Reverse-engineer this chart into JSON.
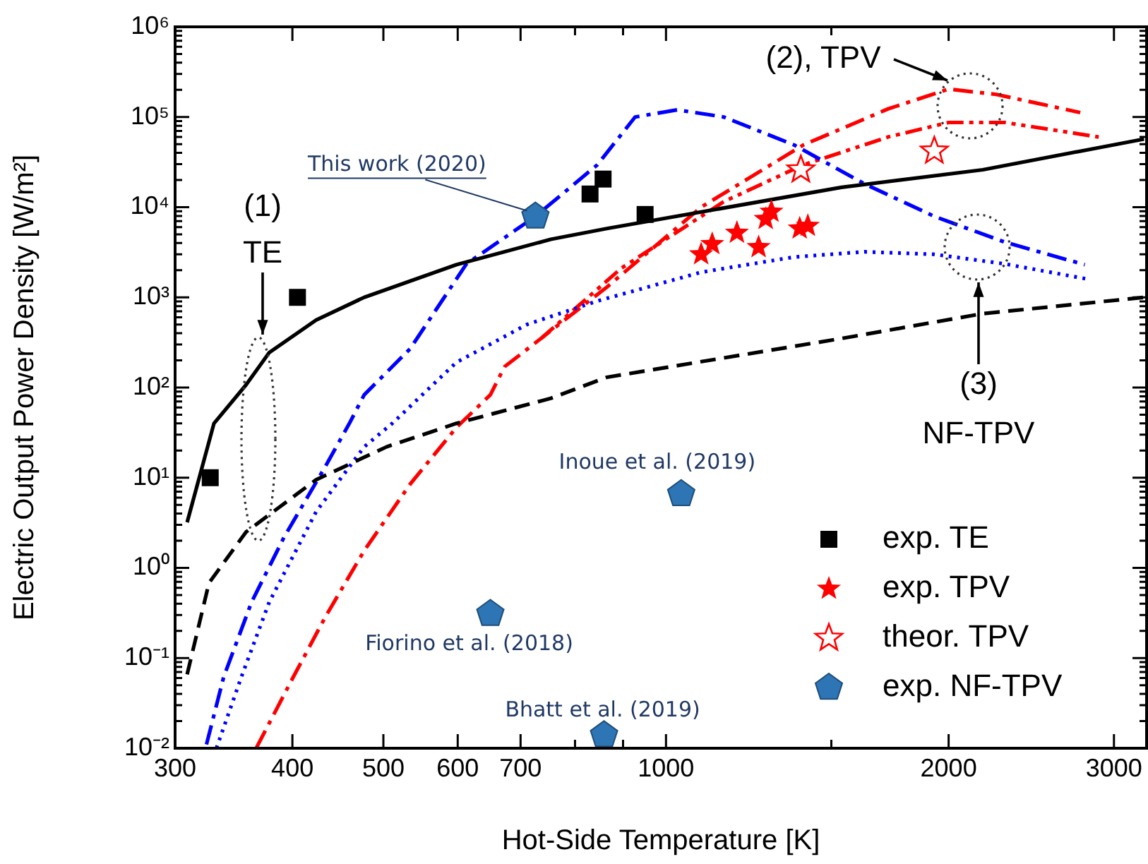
{
  "chart_data": {
    "type": "scatter",
    "xlabel": "Hot-Side Temperature [K]",
    "ylabel": "Electric Output Power Density [W/m²]",
    "log": "xy",
    "xlim": [
      300,
      3250
    ],
    "ylim": [
      0.01,
      1000000
    ],
    "xticks": [
      300,
      400,
      500,
      600,
      700,
      {
        "value": 800,
        "label": null
      },
      {
        "value": 900,
        "label": null
      },
      1000,
      {
        "value": 1500,
        "label": null
      },
      2000,
      3000
    ],
    "yticks": [
      {
        "value": 0.01,
        "label": "10⁻²"
      },
      {
        "value": 0.02,
        "label": null
      },
      {
        "value": 0.03,
        "label": null
      },
      {
        "value": 0.04,
        "label": null
      },
      {
        "value": 0.05,
        "label": null
      },
      {
        "value": 0.06,
        "label": null
      },
      {
        "value": 0.07,
        "label": null
      },
      {
        "value": 0.08,
        "label": null
      },
      {
        "value": 0.09,
        "label": null
      },
      {
        "value": 0.1,
        "label": "10⁻¹"
      },
      {
        "value": 0.2,
        "label": null
      },
      {
        "value": 0.3,
        "label": null
      },
      {
        "value": 0.4,
        "label": null
      },
      {
        "value": 0.5,
        "label": null
      },
      {
        "value": 0.6,
        "label": null
      },
      {
        "value": 0.7,
        "label": null
      },
      {
        "value": 0.8,
        "label": null
      },
      {
        "value": 0.9,
        "label": null
      },
      {
        "value": 1,
        "label": "10⁰"
      },
      {
        "value": 2,
        "label": null
      },
      {
        "value": 3,
        "label": null
      },
      {
        "value": 4,
        "label": null
      },
      {
        "value": 5,
        "label": null
      },
      {
        "value": 6,
        "label": null
      },
      {
        "value": 7,
        "label": null
      },
      {
        "value": 8,
        "label": null
      },
      {
        "value": 9,
        "label": null
      },
      {
        "value": 10,
        "label": "10¹"
      },
      {
        "value": 20,
        "label": null
      },
      {
        "value": 30,
        "label": null
      },
      {
        "value": 40,
        "label": null
      },
      {
        "value": 50,
        "label": null
      },
      {
        "value": 60,
        "label": null
      },
      {
        "value": 70,
        "label": null
      },
      {
        "value": 80,
        "label": null
      },
      {
        "value": 90,
        "label": null
      },
      {
        "value": 100,
        "label": "10²"
      },
      {
        "value": 200,
        "label": null
      },
      {
        "value": 300,
        "label": null
      },
      {
        "value": 400,
        "label": null
      },
      {
        "value": 500,
        "label": null
      },
      {
        "value": 600,
        "label": null
      },
      {
        "value": 700,
        "label": null
      },
      {
        "value": 800,
        "label": null
      },
      {
        "value": 900,
        "label": null
      },
      {
        "value": 1000,
        "label": "10³"
      },
      {
        "value": 2000,
        "label": null
      },
      {
        "value": 3000,
        "label": null
      },
      {
        "value": 4000,
        "label": null
      },
      {
        "value": 5000,
        "label": null
      },
      {
        "value": 6000,
        "label": null
      },
      {
        "value": 7000,
        "label": null
      },
      {
        "value": 8000,
        "label": null
      },
      {
        "value": 9000,
        "label": null
      },
      {
        "value": 10000,
        "label": "10⁴"
      },
      {
        "value": 20000,
        "label": null
      },
      {
        "value": 30000,
        "label": null
      },
      {
        "value": 40000,
        "label": null
      },
      {
        "value": 50000,
        "label": null
      },
      {
        "value": 60000,
        "label": null
      },
      {
        "value": 70000,
        "label": null
      },
      {
        "value": 80000,
        "label": null
      },
      {
        "value": 90000,
        "label": null
      },
      {
        "value": 100000,
        "label": "10⁵"
      },
      {
        "value": 200000,
        "label": null
      },
      {
        "value": 300000,
        "label": null
      },
      {
        "value": 400000,
        "label": null
      },
      {
        "value": 500000,
        "label": null
      },
      {
        "value": 600000,
        "label": null
      },
      {
        "value": 700000,
        "label": null
      },
      {
        "value": 800000,
        "label": null
      },
      {
        "value": 900000,
        "label": null
      },
      {
        "value": 1000000,
        "label": "10⁶"
      }
    ],
    "legend": "bottom right",
    "series": [
      {
        "type": "line",
        "line_style": "solid",
        "color": "#000000",
        "x": [
          309,
          330,
          357,
          378,
          424,
          477,
          598,
          754,
          865,
          1538,
          2175,
          3230
        ],
        "values": [
          3.2,
          40,
          107,
          245,
          560,
          1000,
          2300,
          4400,
          5800,
          16600,
          26000,
          57000
        ]
      },
      {
        "type": "line",
        "line_style": "dashed",
        "color": "#000000",
        "x": [
          309,
          326,
          357,
          424,
          504,
          598,
          754,
          865,
          1538,
          2175,
          3230
        ],
        "values": [
          0.066,
          0.68,
          2.5,
          9.5,
          22,
          40,
          76,
          130,
          350,
          660,
          1000
        ]
      },
      {
        "type": "line",
        "line_style": "dashdot",
        "color": "#0000ff",
        "x": [
          324,
          338,
          362,
          392,
          434,
          460,
          477,
          534,
          613,
          726,
          845,
          927,
          1028,
          1152,
          1369,
          1626,
          1931,
          2295,
          2793
        ],
        "values": [
          0.011,
          0.062,
          0.42,
          2.2,
          13.5,
          40,
          83,
          270,
          2350,
          7900,
          29500,
          100000,
          120000,
          100000,
          49000,
          18200,
          7900,
          4100,
          2300
        ]
      },
      {
        "type": "line",
        "line_style": "dotted",
        "color": "#0000ff",
        "x": [
          332,
          353,
          378,
          424,
          477,
          511,
          598,
          711,
          845,
          1090,
          1369,
          1626,
          1931,
          2295,
          2825
        ],
        "values": [
          0.01,
          0.062,
          0.42,
          4.2,
          22,
          40,
          190,
          500,
          910,
          1900,
          2800,
          3200,
          3000,
          2350,
          1580
        ]
      },
      {
        "type": "line",
        "line_style": "dashdot",
        "color": "#ff0000",
        "x": [
          366,
          401,
          434,
          477,
          534,
          598,
          650,
          673,
          736,
          865,
          1090,
          1401,
          1724,
          2000,
          2248,
          2762
        ],
        "values": [
          0.01,
          0.062,
          0.29,
          1.55,
          8.5,
          36,
          83,
          170,
          350,
          1300,
          10000,
          49000,
          123000,
          204000,
          178000,
          112000
        ]
      },
      {
        "type": "line",
        "line_style": "dashdotdot",
        "color": "#ff0000",
        "x": [
          736,
          896,
          1152,
          1401,
          1724,
          2000,
          2295,
          2890
        ],
        "values": [
          350,
          2100,
          11500,
          29500,
          60000,
          87000,
          87000,
          60000
        ]
      },
      {
        "type": "scatter",
        "name": "exp. TE",
        "marker": "square",
        "color": "#000000",
        "x": [
          327,
          405,
          830,
          857,
          950
        ],
        "values": [
          10,
          1000,
          14000,
          20500,
          8300
        ]
      },
      {
        "type": "scatter",
        "name": "exp. TPV",
        "marker": "star",
        "color": "#ff0000",
        "x": [
          1090,
          1120,
          1190,
          1255,
          1277,
          1295,
          1388,
          1416
        ],
        "values": [
          3000,
          3900,
          5200,
          3600,
          7400,
          8900,
          5800,
          6200
        ]
      },
      {
        "type": "scatter",
        "name": "theor. TPV",
        "marker": "star_open",
        "color": "#ff0000",
        "x": [
          1392,
          1931
        ],
        "values": [
          26000,
          42000
        ]
      },
      {
        "type": "scatter",
        "name": "exp. NF-TPV",
        "color": "#2e75b6",
        "x": [
          726,
          1038,
          650,
          859
        ],
        "values": [
          7900,
          6.6,
          0.31,
          0.014
        ]
      }
    ],
    "annotations": [
      {
        "text": "This work (2020)",
        "x": 726,
        "y": 7900
      },
      {
        "text": "Inoue et al. (2019)",
        "x": 1038,
        "y": 6.6
      },
      {
        "text": "Fiorino et al. (2018)",
        "x": 650,
        "y": 0.31
      },
      {
        "text": "Bhatt et al. (2019)",
        "x": 859,
        "y": 0.014
      },
      "(1)\nTE",
      "(2), TPV",
      "(3)\nNF-TPV"
    ]
  }
}
